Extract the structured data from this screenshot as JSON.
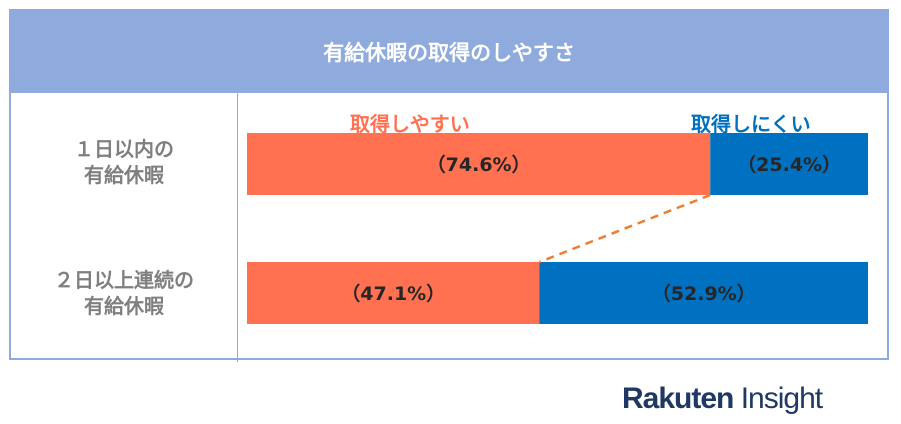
{
  "title": "有給休暇の取得のしやすさ",
  "rows": [
    {
      "label_line1": "１日以内の",
      "label_line2": "有給休暇"
    },
    {
      "label_line1": "２日以上連続の",
      "label_line2": "有給休暇"
    }
  ],
  "logo": {
    "part1": "Rakuten",
    "part2": " Insight"
  },
  "colors": {
    "easy": "#FF7150",
    "hard": "#0070C0",
    "header": "#8FAADC",
    "dash": "#ED7D31"
  },
  "chart_data": {
    "type": "bar",
    "stacked": true,
    "orientation": "horizontal",
    "title": "有給休暇の取得のしやすさ",
    "categories": [
      "１日以内の有給休暇",
      "２日以上連続の有給休暇"
    ],
    "series": [
      {
        "name": "取得しやすい",
        "values": [
          74.6,
          47.1
        ],
        "labels": [
          "（74.6%）",
          "（47.1%）"
        ]
      },
      {
        "name": "取得しにくい",
        "values": [
          25.4,
          52.9
        ],
        "labels": [
          "（25.4%）",
          "（52.9%）"
        ]
      }
    ],
    "xlim": [
      0,
      100
    ],
    "legend": "top"
  }
}
